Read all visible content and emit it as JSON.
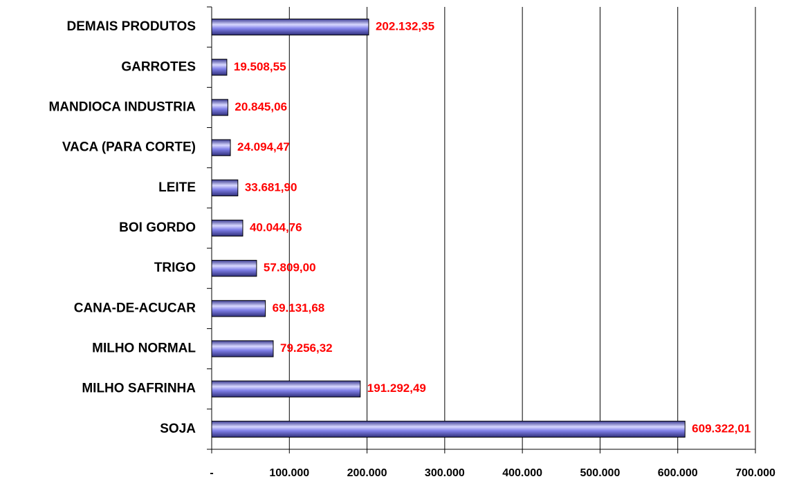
{
  "chart_data": {
    "type": "hbar",
    "categories": [
      "DEMAIS PRODUTOS",
      "GARROTES",
      "MANDIOCA INDUSTRIA",
      "VACA (PARA CORTE)",
      "LEITE",
      "BOI GORDO",
      "TRIGO",
      "CANA-DE-ACUCAR",
      "MILHO NORMAL",
      "MILHO SAFRINHA",
      "SOJA"
    ],
    "values": [
      202132.35,
      19508.55,
      20845.06,
      24094.47,
      33681.9,
      40044.76,
      57809.0,
      69131.68,
      79256.32,
      191292.49,
      609322.01
    ],
    "value_labels": [
      "202.132,35",
      "19.508,55",
      "20.845,06",
      "24.094,47",
      "33.681,90",
      "40.044,76",
      "57.809,00",
      "69.131,68",
      "79.256,32",
      "191.292,49",
      "609.322,01"
    ],
    "color": "#8080e8",
    "xlim": [
      0,
      700000
    ],
    "xticks": [
      {
        "value": 0,
        "label": "-"
      },
      {
        "value": 100000,
        "label": "100.000"
      },
      {
        "value": 200000,
        "label": "200.000"
      },
      {
        "value": 300000,
        "label": "300.000"
      },
      {
        "value": 400000,
        "label": "400.000"
      },
      {
        "value": 500000,
        "label": "500.000"
      },
      {
        "value": 600000,
        "label": "600.000"
      },
      {
        "value": 700000,
        "label": "700.000"
      }
    ],
    "grid": true
  }
}
